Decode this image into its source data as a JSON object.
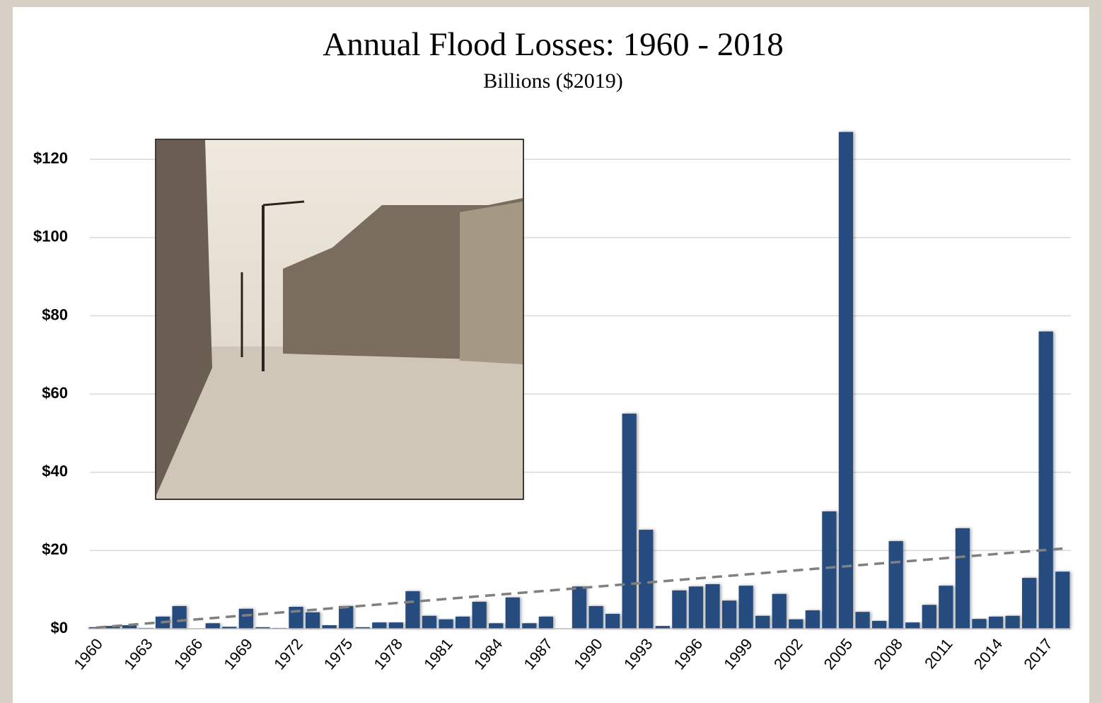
{
  "chart_data": {
    "type": "bar",
    "title": "Annual Flood Losses: 1960 - 2018",
    "subtitle": "Billions ($2019)",
    "categories": [
      "1960",
      null,
      null,
      "1963",
      null,
      null,
      "1966",
      null,
      null,
      "1969",
      null,
      null,
      "1972",
      null,
      null,
      "1975",
      null,
      null,
      "1978",
      null,
      null,
      "1981",
      null,
      null,
      "1984",
      null,
      null,
      "1987",
      null,
      null,
      "1990",
      null,
      null,
      "1993",
      null,
      null,
      "1996",
      null,
      null,
      "1999",
      null,
      null,
      "2002",
      null,
      null,
      "2005",
      null,
      null,
      "2008",
      null,
      null,
      "2011",
      null,
      null,
      "2014",
      null,
      null,
      "2017",
      null
    ],
    "values": [
      0.4,
      0.7,
      0.9,
      0.2,
      3.1,
      5.8,
      0.1,
      1.4,
      0.5,
      5.1,
      0.4,
      0.2,
      5.6,
      4.2,
      0.9,
      5.8,
      0.4,
      1.6,
      1.6,
      9.6,
      3.3,
      2.4,
      3.1,
      6.9,
      1.4,
      8.0,
      1.4,
      3.1,
      0,
      10.8,
      5.8,
      3.8,
      55,
      25.3,
      0.7,
      9.8,
      10.8,
      11.4,
      7.2,
      11.0,
      3.3,
      8.9,
      2.4,
      4.7,
      30,
      127,
      4.3,
      2.0,
      22.4,
      1.6,
      6.1,
      11.0,
      25.7,
      2.5,
      3.1,
      3.3,
      13.0,
      76,
      14.6
    ],
    "color": "#264b7e",
    "trendline": {
      "values": [
        0.3,
        20.5
      ],
      "color": "#808080"
    },
    "ylim": [
      0,
      130
    ],
    "yticks": [
      {
        "value": 0,
        "label": "$0"
      },
      {
        "value": 20,
        "label": "$20"
      },
      {
        "value": 40,
        "label": "$40"
      },
      {
        "value": 60,
        "label": "$60"
      },
      {
        "value": 80,
        "label": "$80"
      },
      {
        "value": 100,
        "label": "$100"
      },
      {
        "value": 120,
        "label": "$120"
      }
    ],
    "grid": true
  }
}
